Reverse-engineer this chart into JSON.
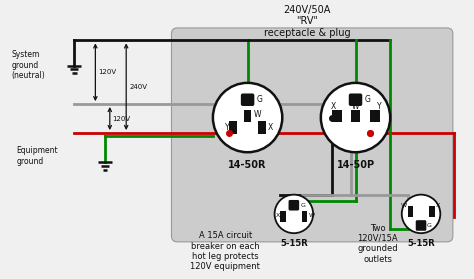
{
  "bg_color": "#f0f0f0",
  "gray_box_color": "#cccccc",
  "title_text": "240V/50A\n\"RV\"\nreceptacle & plug",
  "label_1450R": "14-50R",
  "label_1450P": "14-50P",
  "label_515R_1": "5-15R",
  "label_515R_2": "5-15R",
  "label_sys_ground": "System\nground\n(neutral)",
  "label_eq_ground": "Equipment\nground",
  "label_120v_top": "120V",
  "label_120v_bot": "120V",
  "label_240v": "240V",
  "label_circuit": "A 15A circuit\nbreaker on each\nhot leg protects\n120V equipment",
  "label_two_outlets": "Two\n120V/15A\ngrounded\noutlets",
  "wire_black": "#111111",
  "wire_red": "#cc0000",
  "wire_green": "#008800",
  "wire_gray": "#999999"
}
